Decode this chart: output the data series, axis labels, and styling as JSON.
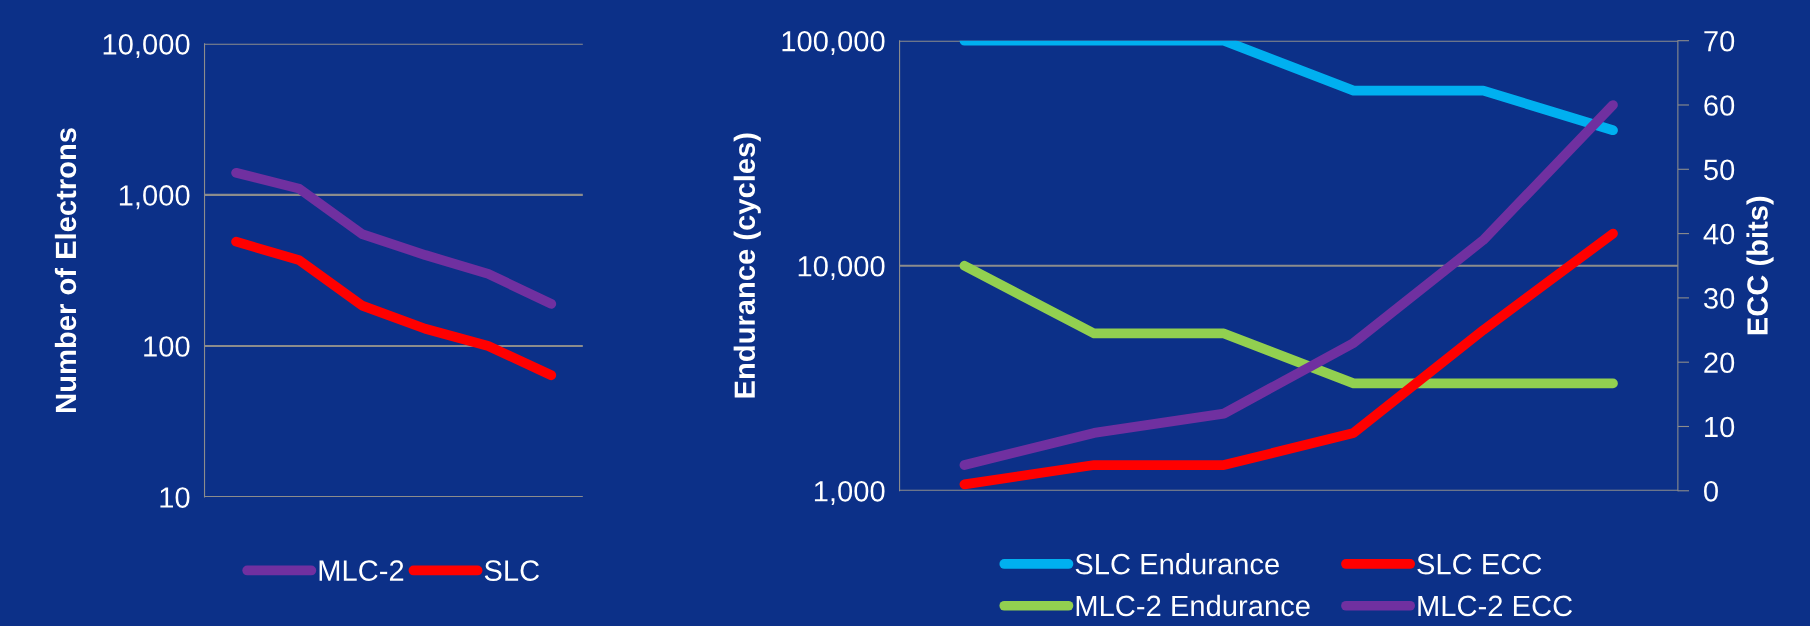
{
  "chart_data": [
    {
      "type": "line",
      "ylabel": "Number of Electrons",
      "categories": [
        null,
        null,
        null,
        null,
        null,
        null
      ],
      "log": true,
      "ylim": [
        10,
        10000
      ],
      "yticks": [
        10,
        100,
        {
          "value": 1000,
          "label": "1,000"
        },
        {
          "value": 10000,
          "label": "10,000"
        }
      ],
      "grid": "y",
      "legend": "bottom",
      "series": [
        {
          "name": "MLC-2",
          "color": "#7030a0",
          "values": [
            1400,
            1100,
            550,
            400,
            300,
            190
          ]
        },
        {
          "name": "SLC",
          "color": "#ff0000",
          "values": [
            490,
            370,
            185,
            130,
            100,
            64
          ]
        }
      ]
    },
    {
      "type": "line",
      "ylabel": "Endurance (cycles)",
      "y2label": "ECC (bits)",
      "categories": [
        null,
        null,
        null,
        null,
        null,
        null
      ],
      "log": true,
      "ylim": [
        1000,
        100000
      ],
      "yticks": [
        {
          "value": 1000,
          "label": "1,000"
        },
        {
          "value": 10000,
          "label": "10,000"
        },
        {
          "value": 100000,
          "label": "100,000"
        }
      ],
      "y2lim": [
        0,
        70
      ],
      "y2ticks": [
        0,
        10,
        20,
        30,
        40,
        50,
        60,
        70
      ],
      "grid": "y",
      "legend": "bottom",
      "series": [
        {
          "name": "SLC Endurance",
          "color": "#00b0f0",
          "values": [
            100000,
            100000,
            100000,
            60000,
            60000,
            40000
          ]
        },
        {
          "name": "MLC-2 Endurance",
          "color": "#92d050",
          "values": [
            10000,
            5000,
            5000,
            3000,
            3000,
            3000
          ]
        },
        {
          "name": "SLC ECC",
          "color": "#ff0000",
          "axis": "y2",
          "values": [
            1,
            4,
            4,
            9,
            25,
            40
          ]
        },
        {
          "name": "MLC-2 ECC",
          "color": "#7030a0",
          "axis": "y2",
          "values": [
            4,
            9,
            12,
            23,
            39,
            60
          ]
        }
      ]
    }
  ]
}
